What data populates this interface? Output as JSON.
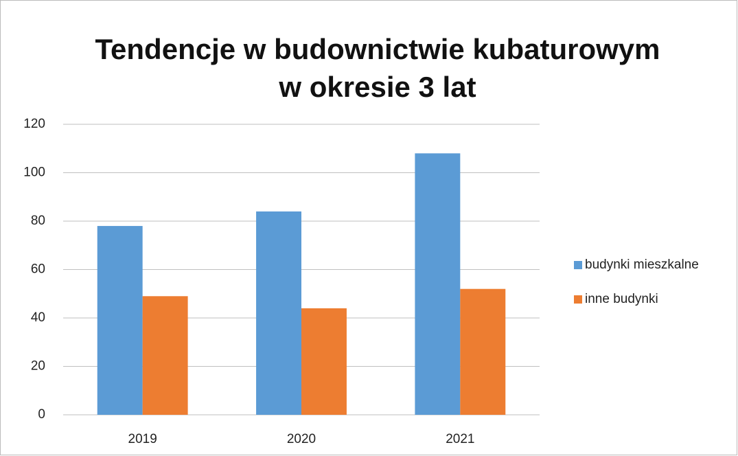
{
  "chart_data": {
    "type": "bar",
    "title": [
      "Tendencje w budownictwie kubaturowym",
      "w okresie 3 lat"
    ],
    "categories": [
      "2019",
      "2020",
      "2021"
    ],
    "series": [
      {
        "name": "budynki mieszkalne",
        "color": "#5b9bd5",
        "values": [
          78,
          84,
          108
        ]
      },
      {
        "name": "inne budynki",
        "color": "#ed7d31",
        "values": [
          49,
          44,
          52
        ]
      }
    ],
    "ylim": [
      0,
      120
    ],
    "yticks": [
      0,
      20,
      40,
      60,
      80,
      100,
      120
    ],
    "grid": true,
    "legend": "right"
  }
}
